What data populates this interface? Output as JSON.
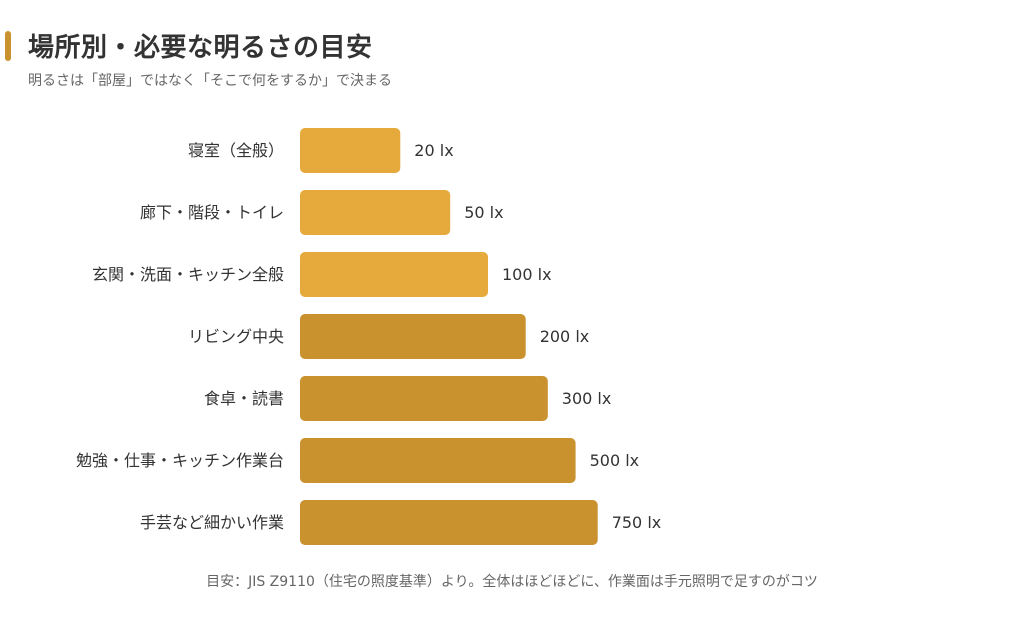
{
  "header": {
    "title": "場所別・必要な明るさの目安",
    "subtitle": "明るさは「部屋」ではなく「そこで何をするか」で決まる"
  },
  "footnote": "目安：JIS Z9110（住宅の照度基準）より。全体はほどほどに、作業面は手元照明で足すのがコツ",
  "colors": {
    "light_bar": "#E6AA3C",
    "dark_bar": "#C9922E",
    "label_text": "#333333",
    "value_text": "#333333"
  },
  "chart_data": {
    "type": "bar",
    "orientation": "horizontal",
    "title": "場所別・必要な明るさの目安",
    "subtitle": "明るさは「部屋」ではなく「そこで何をするか」で決まる",
    "unit": "lx",
    "scale": "log",
    "categories": [
      "寝室（全般）",
      "廊下・階段・トイレ",
      "玄関・洗面・キッチン全般",
      "リビング中央",
      "食卓・読書",
      "勉強・仕事・キッチン作業台",
      "手芸など細かい作業"
    ],
    "values": [
      20,
      50,
      100,
      200,
      300,
      500,
      750
    ],
    "value_labels": [
      "20 lx",
      "50 lx",
      "100 lx",
      "200 lx",
      "300 lx",
      "500 lx",
      "750 lx"
    ],
    "bar_tone": [
      "light",
      "light",
      "light",
      "dark",
      "dark",
      "dark",
      "dark"
    ],
    "grid": false,
    "legend": "none"
  }
}
